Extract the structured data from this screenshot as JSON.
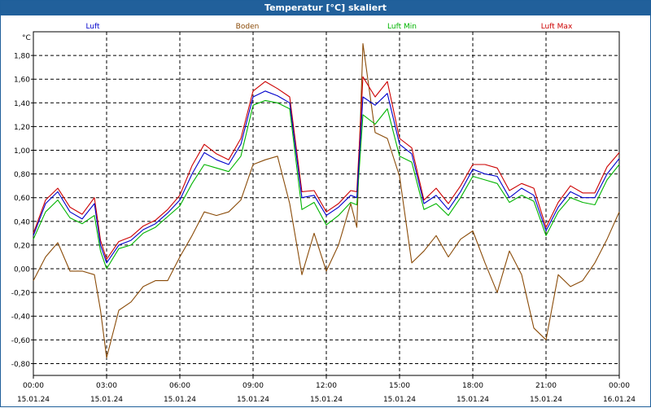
{
  "window": {
    "title": "Temperatur [°C] skaliert"
  },
  "chart_data": {
    "type": "line",
    "title": "Temperatur [°C] skaliert",
    "ylabel": "°C",
    "ylim": [
      -0.9,
      2.0
    ],
    "yticks": [
      -0.8,
      -0.6,
      -0.4,
      -0.2,
      0.0,
      0.2,
      0.4,
      0.6,
      0.8,
      1.0,
      1.2,
      1.4,
      1.6,
      1.8
    ],
    "ytick_labels": [
      "-0,80",
      "-0,60",
      "-0,40",
      "-0,20",
      "0,00",
      "0,20",
      "0,40",
      "0,60",
      "0,80",
      "1,00",
      "1,20",
      "1,40",
      "1,60",
      "1,80"
    ],
    "xlim": [
      0,
      24
    ],
    "xticks": [
      0,
      3,
      6,
      9,
      12,
      15,
      18,
      21,
      24
    ],
    "xtick_time_labels": [
      "00:00",
      "03:00",
      "06:00",
      "09:00",
      "12:00",
      "15:00",
      "18:00",
      "21:00",
      "00:00"
    ],
    "xtick_date_labels": [
      "15.01.24",
      "15.01.24",
      "15.01.24",
      "15.01.24",
      "15.01.24",
      "15.01.24",
      "15.01.24",
      "15.01.24",
      "16.01.24"
    ],
    "grid": true,
    "legend_position": "top",
    "x": [
      0,
      0.5,
      1,
      1.5,
      2,
      2.5,
      2.75,
      3,
      3.5,
      4,
      4.5,
      5,
      5.5,
      6,
      6.5,
      7,
      7.5,
      8,
      8.5,
      9,
      9.5,
      10,
      10.5,
      11,
      11.5,
      12,
      12.5,
      13,
      13.25,
      13.5,
      14,
      14.5,
      15,
      15.5,
      16,
      16.5,
      17,
      17.5,
      18,
      18.5,
      19,
      19.5,
      20,
      20.5,
      21,
      21.5,
      22,
      22.5,
      23,
      23.5,
      24
    ],
    "series": [
      {
        "name": "Luft",
        "color": "#0000cc",
        "values": [
          0.28,
          0.55,
          0.65,
          0.48,
          0.42,
          0.55,
          0.2,
          0.05,
          0.2,
          0.24,
          0.33,
          0.38,
          0.47,
          0.58,
          0.8,
          0.98,
          0.92,
          0.88,
          1.05,
          1.45,
          1.5,
          1.46,
          1.4,
          0.6,
          0.62,
          0.45,
          0.52,
          0.62,
          0.6,
          1.45,
          1.38,
          1.48,
          1.05,
          0.97,
          0.55,
          0.62,
          0.5,
          0.65,
          0.84,
          0.8,
          0.78,
          0.6,
          0.68,
          0.62,
          0.32,
          0.52,
          0.65,
          0.6,
          0.6,
          0.8,
          0.93
        ]
      },
      {
        "name": "Boden",
        "color": "#8a4b08",
        "values": [
          -0.1,
          0.1,
          0.22,
          -0.02,
          -0.02,
          -0.05,
          -0.35,
          -0.75,
          -0.35,
          -0.28,
          -0.15,
          -0.1,
          -0.1,
          0.1,
          0.28,
          0.48,
          0.45,
          0.48,
          0.58,
          0.88,
          0.92,
          0.95,
          0.55,
          -0.05,
          0.3,
          -0.02,
          0.2,
          0.55,
          0.35,
          1.9,
          1.15,
          1.1,
          0.78,
          0.05,
          0.15,
          0.28,
          0.1,
          0.25,
          0.32,
          0.05,
          -0.2,
          0.15,
          -0.05,
          -0.5,
          -0.6,
          -0.05,
          -0.15,
          -0.1,
          0.05,
          0.25,
          0.48
        ]
      },
      {
        "name": "Luft Min",
        "color": "#00b400",
        "values": [
          0.25,
          0.48,
          0.58,
          0.43,
          0.38,
          0.45,
          0.15,
          0.0,
          0.17,
          0.2,
          0.3,
          0.35,
          0.44,
          0.53,
          0.72,
          0.88,
          0.85,
          0.82,
          0.95,
          1.38,
          1.42,
          1.4,
          1.35,
          0.5,
          0.56,
          0.37,
          0.45,
          0.56,
          0.54,
          1.3,
          1.22,
          1.35,
          0.95,
          0.9,
          0.5,
          0.55,
          0.45,
          0.6,
          0.78,
          0.75,
          0.72,
          0.56,
          0.62,
          0.57,
          0.28,
          0.48,
          0.6,
          0.56,
          0.54,
          0.75,
          0.88
        ]
      },
      {
        "name": "Luft Max",
        "color": "#cc0000",
        "values": [
          0.3,
          0.58,
          0.68,
          0.52,
          0.46,
          0.6,
          0.24,
          0.08,
          0.23,
          0.27,
          0.36,
          0.41,
          0.5,
          0.62,
          0.87,
          1.05,
          0.97,
          0.92,
          1.1,
          1.5,
          1.58,
          1.52,
          1.45,
          0.65,
          0.66,
          0.48,
          0.55,
          0.66,
          0.65,
          1.62,
          1.45,
          1.58,
          1.1,
          1.02,
          0.58,
          0.68,
          0.55,
          0.7,
          0.88,
          0.88,
          0.85,
          0.66,
          0.72,
          0.68,
          0.35,
          0.56,
          0.7,
          0.64,
          0.64,
          0.86,
          0.98
        ]
      }
    ]
  }
}
